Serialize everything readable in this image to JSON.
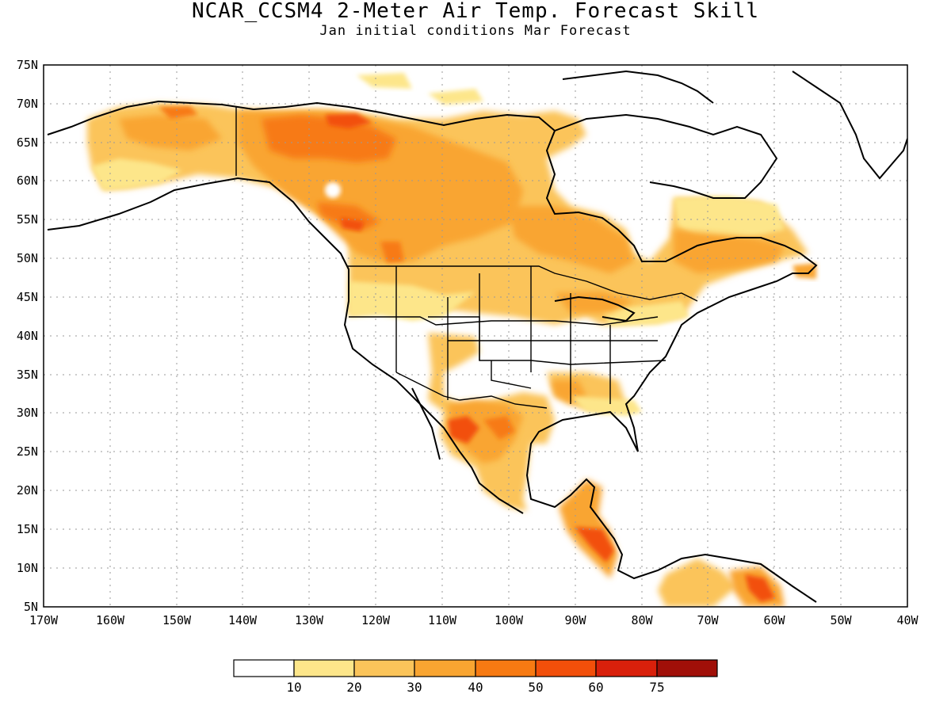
{
  "title": "NCAR_CCSM4 2-Meter Air Temp. Forecast Skill",
  "subtitle": "Jan initial conditions  Mar Forecast",
  "lat_labels": [
    "75N",
    "70N",
    "65N",
    "60N",
    "55N",
    "50N",
    "45N",
    "40N",
    "35N",
    "30N",
    "25N",
    "20N",
    "15N",
    "10N",
    "5N"
  ],
  "lon_labels": [
    "170W",
    "160W",
    "150W",
    "140W",
    "130W",
    "120W",
    "110W",
    "100W",
    "90W",
    "80W",
    "70W",
    "60W",
    "50W",
    "40W"
  ],
  "colorbar": {
    "thresholds": [
      "10",
      "20",
      "30",
      "40",
      "50",
      "60",
      "75"
    ],
    "colors": [
      "#ffffff",
      "#fde68a",
      "#fbc45a",
      "#f9a531",
      "#f77a12",
      "#f24f0a",
      "#d9200b",
      "#a00f08"
    ]
  },
  "map_extent": {
    "lon_min": -170,
    "lon_max": -40,
    "lat_min": 5,
    "lat_max": 75
  }
}
